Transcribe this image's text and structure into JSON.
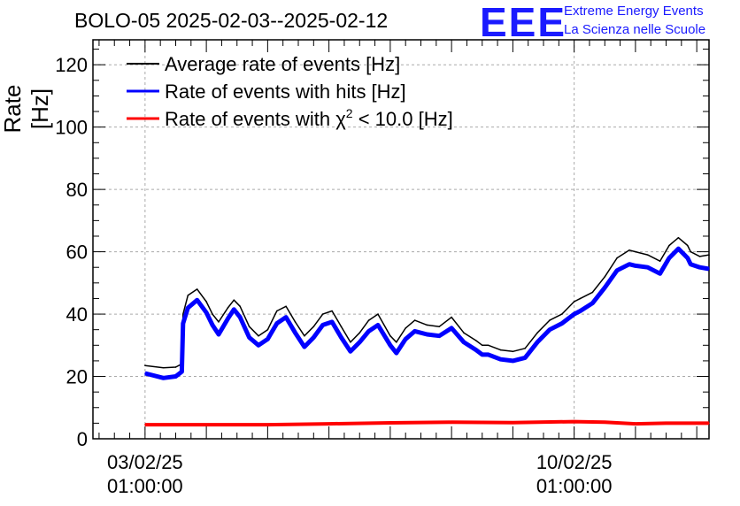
{
  "header": {
    "title": "BOLO-05 2025-02-03--2025-02-12",
    "logo_text": "EEE",
    "org_line1": "Extreme Energy Events",
    "org_line2": "La Scienza nelle Scuole"
  },
  "colors": {
    "average": "#000000",
    "hits": "#0000ff",
    "chi2": "#ff0000",
    "logo": "#1a1aff"
  },
  "chart_data": {
    "type": "line",
    "title": "BOLO-05 2025-02-03--2025-02-12",
    "ylabel": "Rate [Hz]",
    "xlabel": "",
    "ylim": [
      0,
      128
    ],
    "yticks": [
      0,
      20,
      40,
      60,
      80,
      100,
      120
    ],
    "xlim_days": [
      -0.85,
      9.2
    ],
    "x_tick_labels": [
      {
        "x_day": 0,
        "date": "03/02/25",
        "time": "01:00:00"
      },
      {
        "x_day": 7,
        "date": "10/02/25",
        "time": "01:00:00"
      }
    ],
    "grid": true,
    "legend_position": "top-left",
    "series": [
      {
        "name": "Average rate of events [Hz]",
        "color": "#000000",
        "x": [
          0,
          0.3,
          0.5,
          0.6,
          0.62,
          0.7,
          0.85,
          1.0,
          1.1,
          1.2,
          1.35,
          1.45,
          1.55,
          1.7,
          1.85,
          2.0,
          2.15,
          2.3,
          2.45,
          2.6,
          2.75,
          2.9,
          3.05,
          3.2,
          3.35,
          3.5,
          3.65,
          3.8,
          4.0,
          4.1,
          4.25,
          4.4,
          4.6,
          4.8,
          5.0,
          5.2,
          5.4,
          5.5,
          5.6,
          5.8,
          6.0,
          6.2,
          6.4,
          6.6,
          6.8,
          7.0,
          7.1,
          7.3,
          7.5,
          7.7,
          7.9,
          8.0,
          8.2,
          8.4,
          8.55,
          8.7,
          8.85,
          8.9,
          9.05,
          9.2
        ],
        "values": [
          23.5,
          22.8,
          23,
          24,
          40,
          46,
          48,
          44,
          40,
          37.5,
          42,
          44.5,
          42.5,
          36,
          33,
          35,
          41,
          42.5,
          37.5,
          33,
          36,
          40,
          41,
          36,
          31,
          34,
          38,
          40,
          33,
          31,
          35.5,
          38,
          36.5,
          36,
          39,
          34,
          31.5,
          30,
          30,
          28.5,
          28,
          29,
          34,
          38,
          40,
          44,
          45,
          47,
          52,
          58,
          60.5,
          60,
          59,
          57,
          62,
          64.5,
          62,
          60,
          58.5,
          59
        ]
      },
      {
        "name": "Rate of events with hits [Hz]",
        "color": "#0000ff",
        "x": [
          0,
          0.3,
          0.5,
          0.6,
          0.62,
          0.7,
          0.85,
          1.0,
          1.1,
          1.2,
          1.35,
          1.45,
          1.55,
          1.7,
          1.85,
          2.0,
          2.15,
          2.3,
          2.45,
          2.6,
          2.75,
          2.9,
          3.05,
          3.2,
          3.35,
          3.5,
          3.65,
          3.8,
          4.0,
          4.1,
          4.25,
          4.4,
          4.6,
          4.8,
          5.0,
          5.2,
          5.4,
          5.5,
          5.6,
          5.8,
          6.0,
          6.2,
          6.4,
          6.6,
          6.8,
          7.0,
          7.1,
          7.3,
          7.5,
          7.7,
          7.9,
          8.0,
          8.2,
          8.4,
          8.55,
          8.7,
          8.85,
          8.9,
          9.05,
          9.2
        ],
        "values": [
          21,
          19.5,
          20,
          21.5,
          37,
          42,
          44.5,
          40.5,
          36.5,
          33.5,
          38.5,
          41.5,
          39,
          32.5,
          30,
          32,
          37,
          39,
          34,
          29.5,
          32.5,
          36.5,
          37.5,
          32.5,
          28,
          31,
          34.5,
          36.5,
          30,
          27.5,
          32,
          34.5,
          33.5,
          33,
          35.5,
          31,
          28.5,
          27,
          27,
          25.5,
          25,
          26,
          31,
          35,
          37,
          40,
          41,
          43.5,
          48.5,
          54,
          56,
          55.5,
          55,
          53,
          58,
          61,
          58,
          56,
          55,
          54.5
        ]
      },
      {
        "name": "Rate of events with χ² < 10.0 [Hz]",
        "color": "#ff0000",
        "x": [
          0,
          1,
          2,
          3,
          4,
          5,
          6,
          7,
          7.5,
          8,
          8.5,
          9.2
        ],
        "values": [
          4.5,
          4.5,
          4.5,
          4.8,
          5.1,
          5.3,
          5.2,
          5.5,
          5.3,
          4.8,
          5,
          5
        ]
      }
    ],
    "legend": [
      {
        "label": "Average rate of events [Hz]",
        "color": "#000000"
      },
      {
        "label": "Rate of events with hits [Hz]",
        "color": "#0000ff"
      },
      {
        "label_prefix": "Rate of events with ",
        "chi": "χ",
        "sup": "2",
        "label_suffix": " < 10.0 [Hz]",
        "color": "#ff0000"
      }
    ]
  }
}
